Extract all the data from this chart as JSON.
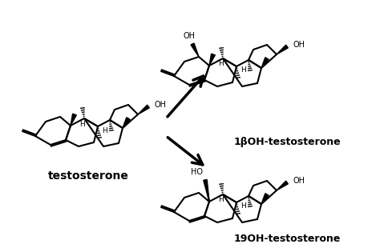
{
  "bg": "#ffffff",
  "lc": "#000000",
  "label_testosterone": "testosterone",
  "label_1b": "1βOH-testosterone",
  "label_19": "19OH-testosterone",
  "figsize": [
    4.74,
    3.1
  ],
  "dpi": 100
}
